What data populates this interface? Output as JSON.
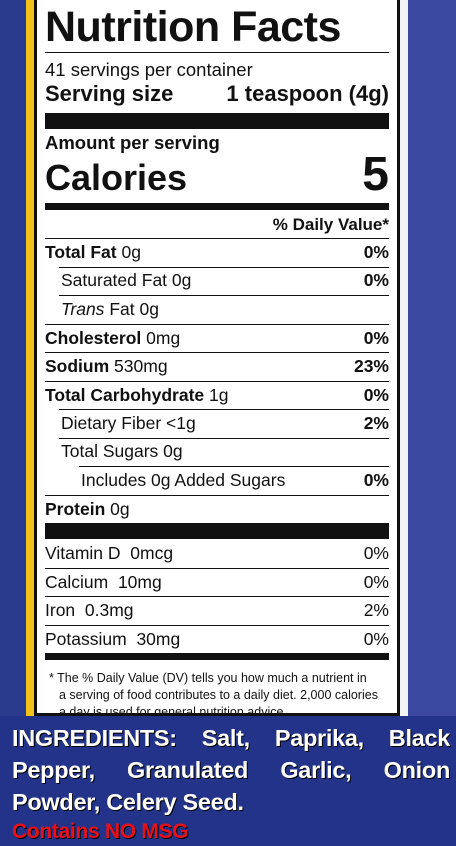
{
  "label": {
    "title": "Nutrition Facts",
    "servings_per_container": "41 servings per container",
    "serving_size_label": "Serving size",
    "serving_size_value": "1 teaspoon (4g)",
    "amount_per_serving": "Amount per serving",
    "calories_label": "Calories",
    "calories_value": "5",
    "dv_header": "% Daily Value*",
    "nutrients": [
      {
        "name": "Total Fat",
        "amount": "0g",
        "dv": "0%"
      },
      {
        "name": "Saturated Fat",
        "amount": "0g",
        "dv": "0%"
      },
      {
        "name_italic": "Trans",
        "name": "Fat",
        "amount": "0g",
        "dv": ""
      },
      {
        "name": "Cholesterol",
        "amount": "0mg",
        "dv": "0%"
      },
      {
        "name": "Sodium",
        "amount": "530mg",
        "dv": "23%"
      },
      {
        "name": "Total Carbohydrate",
        "amount": "1g",
        "dv": "0%"
      },
      {
        "name": "Dietary Fiber",
        "amount": "<1g",
        "dv": "2%"
      },
      {
        "name": "Total Sugars",
        "amount": "0g",
        "dv": ""
      },
      {
        "name": "Includes 0g Added Sugars",
        "amount": "",
        "dv": "0%"
      },
      {
        "name": "Protein",
        "amount": "0g",
        "dv": ""
      }
    ],
    "vitamins": [
      {
        "name": "Vitamin D",
        "amount": "0mcg",
        "dv": "0%"
      },
      {
        "name": "Calcium",
        "amount": "10mg",
        "dv": "0%"
      },
      {
        "name": "Iron",
        "amount": "0.3mg",
        "dv": "2%"
      },
      {
        "name": "Potassium",
        "amount": "30mg",
        "dv": "0%"
      }
    ],
    "footnote_line1": "* The % Daily Value (DV) tells you how much a nutrient in",
    "footnote_line2": "a serving of food contributes to a daily diet. 2,000 calories",
    "footnote_line3": "a day is used for general nutrition advice."
  },
  "ingredients": {
    "label": "INGREDIENTS:",
    "text": "Salt, Paprika, Black Pepper, Granulated Garlic, Onion Powder, Celery Seed.",
    "msg_notice": "Contains NO MSG"
  },
  "colors": {
    "background_blue": "#24338a",
    "accent_yellow": "#f2c21a",
    "msg_red": "#e8101a"
  }
}
